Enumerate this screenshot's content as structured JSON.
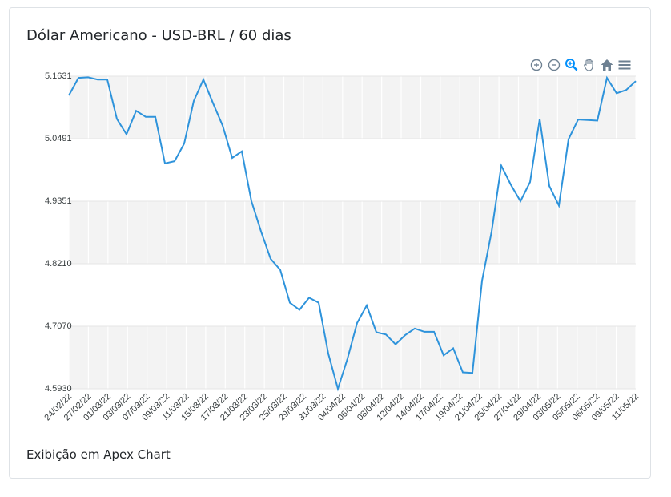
{
  "card": {
    "title": "Dólar Americano - USD-BRL / 60 dias",
    "footer": "Exibição em Apex Chart"
  },
  "toolbar": {
    "icons": [
      "zoom-in-icon",
      "zoom-out-icon",
      "zoom-selection-icon",
      "pan-hand-icon",
      "reset-home-icon",
      "menu-icon"
    ],
    "active_color": "#008ffb",
    "inactive_color": "#6e8192"
  },
  "chart_data": {
    "type": "line",
    "title": "",
    "xlabel": "",
    "ylabel": "",
    "series_color": "#2e93db",
    "grid": true,
    "y_ticks": [
      "5.1631",
      "5.0491",
      "4.9351",
      "4.8210",
      "4.7070",
      "4.5930"
    ],
    "ylim": [
      4.593,
      5.1631
    ],
    "x_tick_labels": [
      "24/02/22",
      "27/02/22",
      "01/03/22",
      "03/03/22",
      "07/03/22",
      "09/03/22",
      "11/03/22",
      "15/03/22",
      "17/03/22",
      "21/03/22",
      "23/03/22",
      "25/03/22",
      "29/03/22",
      "31/03/22",
      "04/04/22",
      "06/04/22",
      "08/04/22",
      "12/04/22",
      "14/04/22",
      "17/04/22",
      "19/04/22",
      "21/04/22",
      "25/04/22",
      "27/04/22",
      "29/04/22",
      "03/05/22",
      "05/05/22",
      "06/05/22",
      "09/05/22",
      "11/05/22"
    ],
    "values": [
      5.128,
      5.16,
      5.161,
      5.157,
      5.157,
      5.085,
      5.057,
      5.1,
      5.089,
      5.089,
      5.004,
      5.008,
      5.04,
      5.118,
      5.157,
      5.114,
      5.073,
      5.014,
      5.026,
      4.935,
      4.88,
      4.83,
      4.81,
      4.75,
      4.737,
      4.759,
      4.75,
      4.657,
      4.593,
      4.648,
      4.713,
      4.745,
      4.696,
      4.692,
      4.674,
      4.691,
      4.703,
      4.697,
      4.697,
      4.654,
      4.667,
      4.623,
      4.622,
      4.79,
      4.88,
      5.0,
      4.965,
      4.935,
      4.97,
      5.085,
      4.963,
      4.927,
      5.048,
      5.084,
      5.083,
      5.082,
      5.16,
      5.132,
      5.138,
      5.154
    ]
  }
}
